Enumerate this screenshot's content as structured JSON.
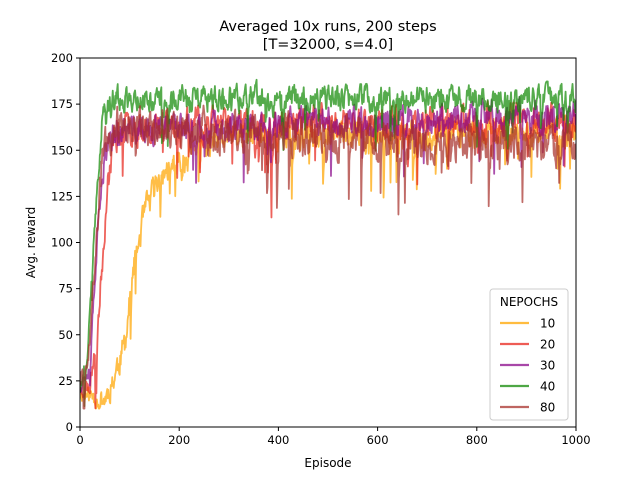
{
  "chart_data": {
    "type": "line",
    "title": "Averaged 10x runs, 200 steps",
    "subtitle": "[T=32000, s=4.0]",
    "xlabel": "Episode",
    "ylabel": "Avg. reward",
    "xlim": [
      0,
      1000
    ],
    "ylim": [
      0,
      200
    ],
    "xticks": [
      0,
      200,
      400,
      600,
      800,
      1000
    ],
    "yticks": [
      0,
      25,
      50,
      75,
      100,
      125,
      150,
      175,
      200
    ],
    "grid": false,
    "legend": {
      "title": "NEPOCHS",
      "position": "bottom-right"
    },
    "episodes": 1000,
    "series": [
      {
        "name": "10",
        "color": "#FFA500",
        "keypoints": [
          [
            0,
            18
          ],
          [
            20,
            17
          ],
          [
            50,
            15
          ],
          [
            70,
            28
          ],
          [
            90,
            45
          ],
          [
            110,
            90
          ],
          [
            130,
            115
          ],
          [
            160,
            135
          ],
          [
            200,
            145
          ],
          [
            250,
            152
          ],
          [
            300,
            158
          ],
          [
            1000,
            160
          ]
        ],
        "noise": 14,
        "seed": 11
      },
      {
        "name": "20",
        "color": "#E8251C",
        "keypoints": [
          [
            0,
            20
          ],
          [
            20,
            22
          ],
          [
            40,
            70
          ],
          [
            55,
            130
          ],
          [
            70,
            158
          ],
          [
            100,
            163
          ],
          [
            1000,
            167
          ]
        ],
        "noise": 15,
        "seed": 23
      },
      {
        "name": "30",
        "color": "#8B0A8B",
        "keypoints": [
          [
            0,
            22
          ],
          [
            20,
            35
          ],
          [
            35,
            100
          ],
          [
            50,
            148
          ],
          [
            70,
            160
          ],
          [
            1000,
            170
          ]
        ],
        "noise": 14,
        "seed": 37
      },
      {
        "name": "40",
        "color": "#138A07",
        "keypoints": [
          [
            0,
            20
          ],
          [
            15,
            40
          ],
          [
            30,
            110
          ],
          [
            45,
            170
          ],
          [
            70,
            178
          ],
          [
            1000,
            178
          ]
        ],
        "noise": 12,
        "seed": 41
      },
      {
        "name": "80",
        "color": "#A8322C",
        "keypoints": [
          [
            0,
            25
          ],
          [
            20,
            45
          ],
          [
            30,
            90
          ],
          [
            45,
            150
          ],
          [
            70,
            165
          ],
          [
            300,
            160
          ],
          [
            1000,
            152
          ]
        ],
        "noise": 18,
        "seed": 59
      }
    ]
  }
}
